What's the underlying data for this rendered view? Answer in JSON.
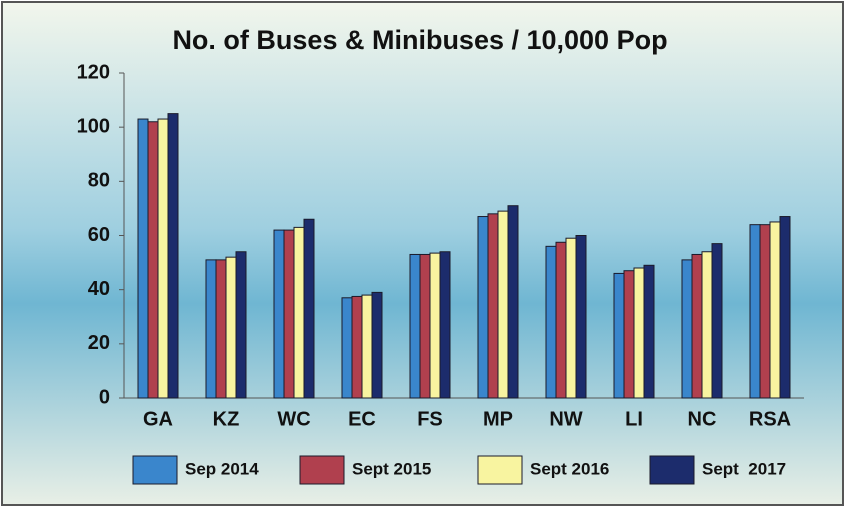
{
  "chart_data": {
    "type": "bar",
    "title": "No. of Buses & Minibuses / 10,000 Pop",
    "categories": [
      "GA",
      "KZ",
      "WC",
      "EC",
      "FS",
      "MP",
      "NW",
      "LI",
      "NC",
      "RSA"
    ],
    "series": [
      {
        "name": "Sep 2014",
        "color": "#3a86cc",
        "values": [
          103,
          51,
          62,
          37,
          53,
          67,
          56,
          46,
          51,
          64
        ]
      },
      {
        "name": "Sept 2015",
        "color": "#b0404e",
        "values": [
          102,
          51,
          62,
          37.5,
          53,
          68,
          57.5,
          47,
          53,
          64
        ]
      },
      {
        "name": "Sept 2016",
        "color": "#f8f4a0",
        "values": [
          103,
          52,
          63,
          38,
          53.5,
          69,
          59,
          48,
          54,
          65
        ]
      },
      {
        "name": "Sept  2017",
        "color": "#1c2c6c",
        "values": [
          105,
          54,
          66,
          39,
          54,
          71,
          60,
          49,
          57,
          67
        ]
      }
    ],
    "ylim": [
      0,
      120
    ],
    "yticks": [
      0,
      20,
      40,
      60,
      80,
      100,
      120
    ],
    "legend": "bottom"
  }
}
